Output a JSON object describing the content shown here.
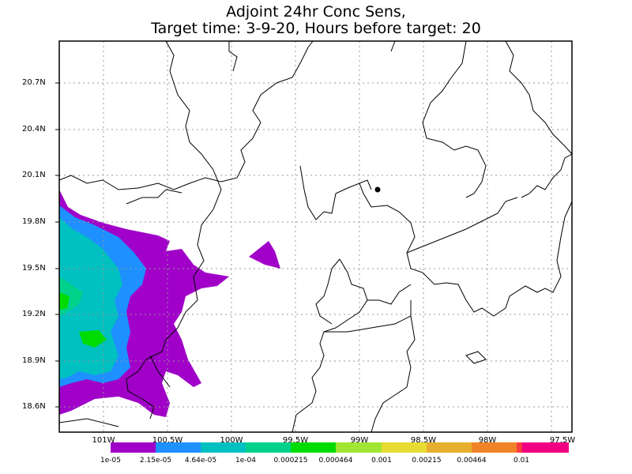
{
  "title": {
    "line1": "Adjoint 24hr Conc Sens,",
    "line2": "Target time: 3-9-20, Hours before target: 20"
  },
  "map": {
    "lat_labels": [
      "20.7N",
      "20.4N",
      "20.1N",
      "19.8N",
      "19.5N",
      "19.2N",
      "18.9N",
      "18.6N"
    ],
    "lon_labels": [
      "101W",
      "100.5W",
      "100W",
      "99.5W",
      "99W",
      "98.5W",
      "98W",
      "97.5W"
    ],
    "target_marker": "target-point"
  },
  "colorbar": {
    "labels": [
      "1e-05",
      "2.15e-05",
      "4.64e-05",
      "1e-04",
      "0.000215",
      "0.000464",
      "0.001",
      "0.00215",
      "0.00464",
      "0.01"
    ],
    "colors": [
      "#a000c8",
      "#1e90ff",
      "#00c0c0",
      "#00d28c",
      "#00dc00",
      "#a0e632",
      "#e6dc32",
      "#e6af2d",
      "#f08228",
      "#fa3c3c",
      "#f00082"
    ]
  }
}
